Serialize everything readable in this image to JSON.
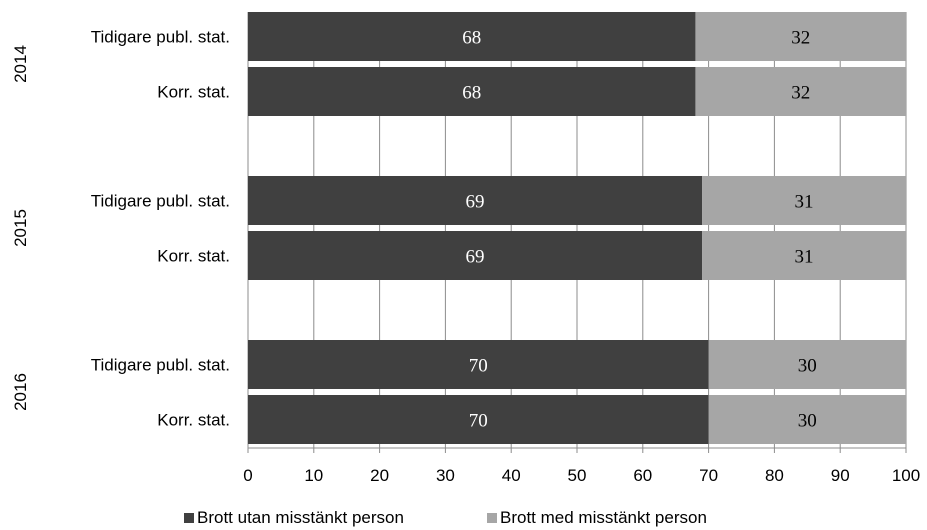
{
  "chart_data": {
    "type": "bar",
    "orientation": "horizontal",
    "stacked": true,
    "groups": [
      {
        "year": "2014",
        "rows": [
          {
            "label": "Tidigare publ. stat.",
            "values": [
              68,
              32
            ]
          },
          {
            "label": "Korr. stat.",
            "values": [
              68,
              32
            ]
          }
        ]
      },
      {
        "year": "2015",
        "rows": [
          {
            "label": "Tidigare publ. stat.",
            "values": [
              69,
              31
            ]
          },
          {
            "label": "Korr. stat.",
            "values": [
              69,
              31
            ]
          }
        ]
      },
      {
        "year": "2016",
        "rows": [
          {
            "label": "Tidigare publ. stat.",
            "values": [
              70,
              30
            ]
          },
          {
            "label": "Korr. stat.",
            "values": [
              70,
              30
            ]
          }
        ]
      }
    ],
    "series": [
      {
        "name": "Brott utan misstänkt person",
        "color": "#404040",
        "label_color": "#ffffff"
      },
      {
        "name": "Brott med misstänkt person",
        "color": "#a6a6a6",
        "label_color": "#000000"
      }
    ],
    "xlim": [
      0,
      100
    ],
    "xticks": [
      0,
      10,
      20,
      30,
      40,
      50,
      60,
      70,
      80,
      90,
      100
    ],
    "grid": true,
    "legend_position": "bottom",
    "title": "",
    "xlabel": "",
    "ylabel": ""
  }
}
